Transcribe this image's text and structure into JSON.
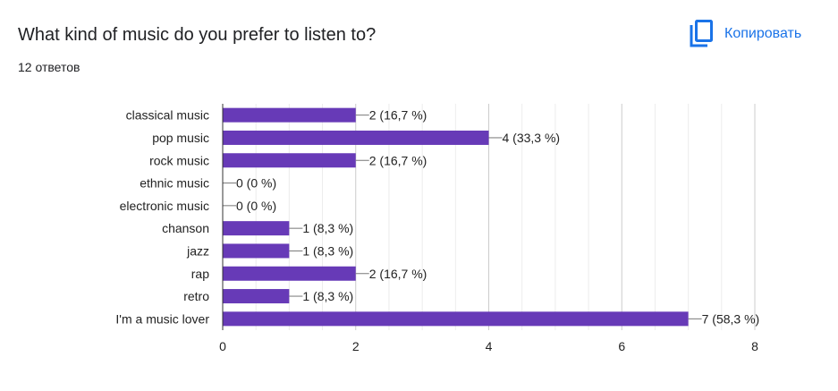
{
  "header": {
    "title": "What kind of music do you prefer to listen to?",
    "response_count": "12 ответов",
    "copy_label": "Копировать",
    "copy_icon": "copy-icon",
    "accent_color": "#1a73e8"
  },
  "chart_data": {
    "type": "bar",
    "orientation": "horizontal",
    "title": "",
    "xlabel": "",
    "ylabel": "",
    "xlim": [
      0,
      8
    ],
    "x_ticks": [
      0,
      2,
      4,
      6,
      8
    ],
    "grid": true,
    "bar_color": "#673ab7",
    "categories": [
      "classical music",
      "pop music",
      "rock music",
      "ethnic music",
      "electronic music",
      "chanson",
      "jazz",
      "rap",
      "retro",
      "I'm a music lover"
    ],
    "values": [
      2,
      4,
      2,
      0,
      0,
      1,
      1,
      2,
      1,
      7
    ],
    "data_labels": [
      "2 (16,7 %)",
      "4 (33,3 %)",
      "2 (16,7 %)",
      "0 (0 %)",
      "0 (0 %)",
      "1 (8,3 %)",
      "1 (8,3 %)",
      "2 (16,7 %)",
      "1 (8,3 %)",
      "7 (58,3 %)"
    ]
  }
}
